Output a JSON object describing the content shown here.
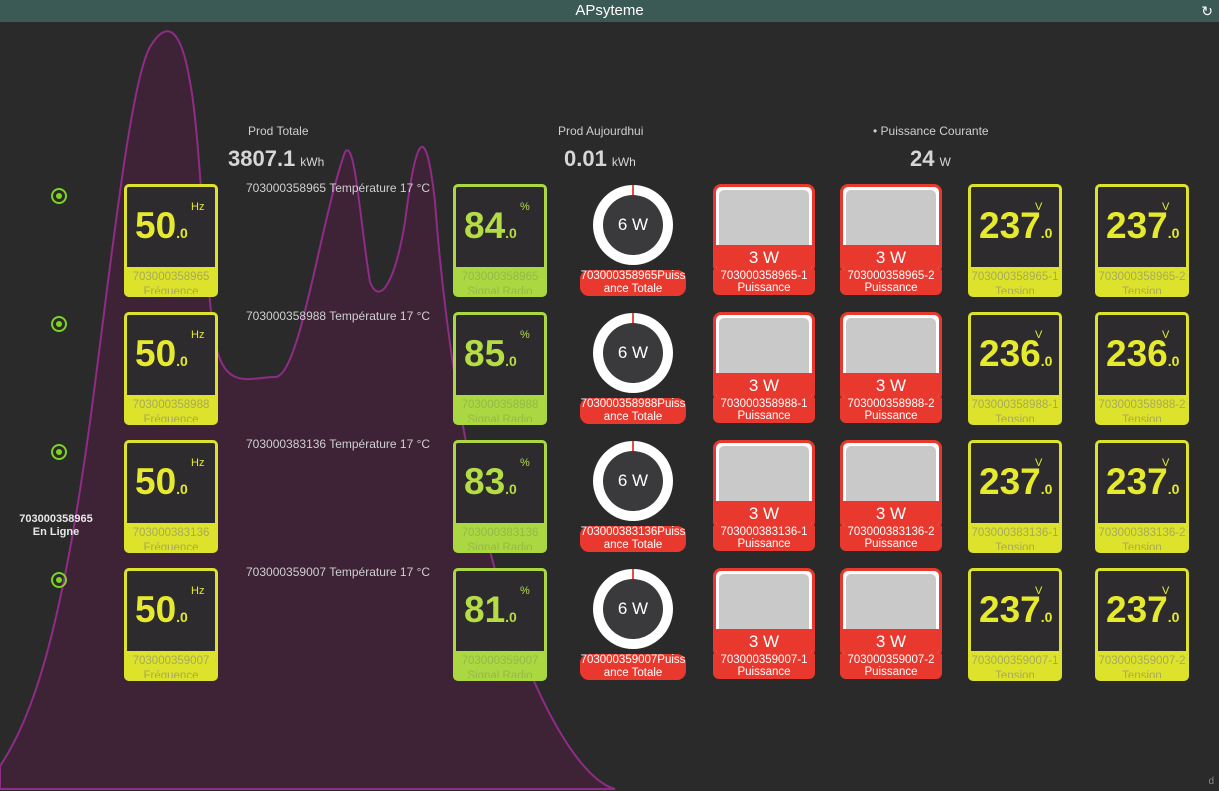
{
  "window": {
    "title": "APsyteme",
    "refresh_icon": "refresh-icon"
  },
  "summary": {
    "prod_totale": {
      "label": "Prod Totale",
      "value": "3807.1",
      "unit": "kWh"
    },
    "prod_aujourdhui": {
      "label": "Prod Aujourdhui",
      "value": "0.01",
      "unit": "kWh"
    },
    "puissance_courante": {
      "label": "• Puissance Courante",
      "value": "24",
      "unit": "W"
    }
  },
  "side_status": {
    "id": "703000358965",
    "status": "En Ligne"
  },
  "rows": [
    {
      "id": "703000358965",
      "temp": "703000358965 Température 17 °C",
      "freq": {
        "int": "50",
        "dec": ".0",
        "unit": "Hz",
        "cap1": "703000358965",
        "cap2": "Fréquence"
      },
      "signal": {
        "int": "84",
        "dec": ".0",
        "unit": "%",
        "cap1": "703000358965",
        "cap2": "Signal Radio"
      },
      "total": {
        "value": "6 W",
        "label": "703000358965Puissance Totale"
      },
      "p1": {
        "value": "3 W",
        "label1": "703000358965-1",
        "label2": "Puissance"
      },
      "p2": {
        "value": "3 W",
        "label1": "703000358965-2",
        "label2": "Puissance"
      },
      "t1": {
        "int": "237",
        "dec": ".0",
        "unit": "V",
        "cap1": "703000358965-1",
        "cap2": "Tension"
      },
      "t2": {
        "int": "237",
        "dec": ".0",
        "unit": "V",
        "cap1": "703000358965-2",
        "cap2": "Tension"
      }
    },
    {
      "id": "703000358988",
      "temp": "703000358988 Température 17 °C",
      "freq": {
        "int": "50",
        "dec": ".0",
        "unit": "Hz",
        "cap1": "703000358988",
        "cap2": "Fréquence"
      },
      "signal": {
        "int": "85",
        "dec": ".0",
        "unit": "%",
        "cap1": "703000358988",
        "cap2": "Signal Radio"
      },
      "total": {
        "value": "6 W",
        "label": "703000358988Puissance Totale"
      },
      "p1": {
        "value": "3 W",
        "label1": "703000358988-1",
        "label2": "Puissance"
      },
      "p2": {
        "value": "3 W",
        "label1": "703000358988-2",
        "label2": "Puissance"
      },
      "t1": {
        "int": "236",
        "dec": ".0",
        "unit": "V",
        "cap1": "703000358988-1",
        "cap2": "Tension"
      },
      "t2": {
        "int": "236",
        "dec": ".0",
        "unit": "V",
        "cap1": "703000358988-2",
        "cap2": "Tension"
      }
    },
    {
      "id": "703000383136",
      "temp": "703000383136 Température 17 °C",
      "freq": {
        "int": "50",
        "dec": ".0",
        "unit": "Hz",
        "cap1": "703000383136",
        "cap2": "Fréquence"
      },
      "signal": {
        "int": "83",
        "dec": ".0",
        "unit": "%",
        "cap1": "703000383136",
        "cap2": "Signal Radio"
      },
      "total": {
        "value": "6 W",
        "label": "703000383136Puissance Totale"
      },
      "p1": {
        "value": "3 W",
        "label1": "703000383136-1",
        "label2": "Puissance"
      },
      "p2": {
        "value": "3 W",
        "label1": "703000383136-2",
        "label2": "Puissance"
      },
      "t1": {
        "int": "237",
        "dec": ".0",
        "unit": "V",
        "cap1": "703000383136-1",
        "cap2": "Tension"
      },
      "t2": {
        "int": "237",
        "dec": ".0",
        "unit": "V",
        "cap1": "703000383136-2",
        "cap2": "Tension"
      }
    },
    {
      "id": "703000359007",
      "temp": "703000359007 Température 17 °C",
      "freq": {
        "int": "50",
        "dec": ".0",
        "unit": "Hz",
        "cap1": "703000359007",
        "cap2": "Fréquence"
      },
      "signal": {
        "int": "81",
        "dec": ".0",
        "unit": "%",
        "cap1": "703000359007",
        "cap2": "Signal Radio"
      },
      "total": {
        "value": "6 W",
        "label": "703000359007Puissance Totale"
      },
      "p1": {
        "value": "3 W",
        "label1": "703000359007-1",
        "label2": "Puissance"
      },
      "p2": {
        "value": "3 W",
        "label1": "703000359007-2",
        "label2": "Puissance"
      },
      "t1": {
        "int": "237",
        "dec": ".0",
        "unit": "V",
        "cap1": "703000359007-1",
        "cap2": "Tension"
      },
      "t2": {
        "int": "237",
        "dec": ".0",
        "unit": "V",
        "cap1": "703000359007-2",
        "cap2": "Tension"
      }
    }
  ],
  "corner_mark": "d",
  "colors": {
    "yellow": "#dde32a",
    "green": "#abd841",
    "red": "#e9392e",
    "curve": "#8e2c86"
  }
}
